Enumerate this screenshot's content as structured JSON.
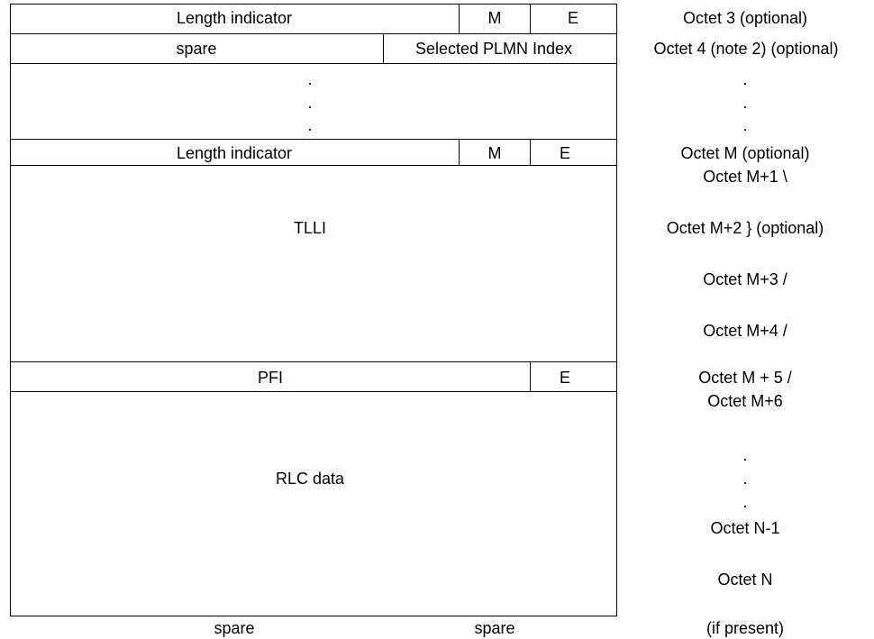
{
  "fields": {
    "length_indicator_1": "Length indicator",
    "m_1": "M",
    "e_1": "E",
    "spare_1": "spare",
    "selected_plmn_index": "Selected PLMN Index",
    "dots": ".",
    "length_indicator_2": "Length indicator",
    "m_2": "M",
    "e_2": "E",
    "tlli": "TLLI",
    "pfi": "PFI",
    "e_3": "E",
    "rlc_data": "RLC data",
    "spare_bottom_1": "spare",
    "spare_bottom_2": "spare"
  },
  "octets": {
    "o3": "Octet 3 (optional)",
    "o4": "Octet 4 (note 2)  (optional)",
    "dot": ".",
    "om": "Octet M (optional)",
    "om1": "Octet M+1 \\",
    "om2": "Octet M+2 } (optional)",
    "om3": "Octet M+3 /",
    "om4": "Octet M+4 /",
    "om5": "Octet M + 5 /",
    "om6": "Octet M+6",
    "on1": "Octet N-1",
    "on": "Octet N",
    "if_present": "(if present)"
  }
}
